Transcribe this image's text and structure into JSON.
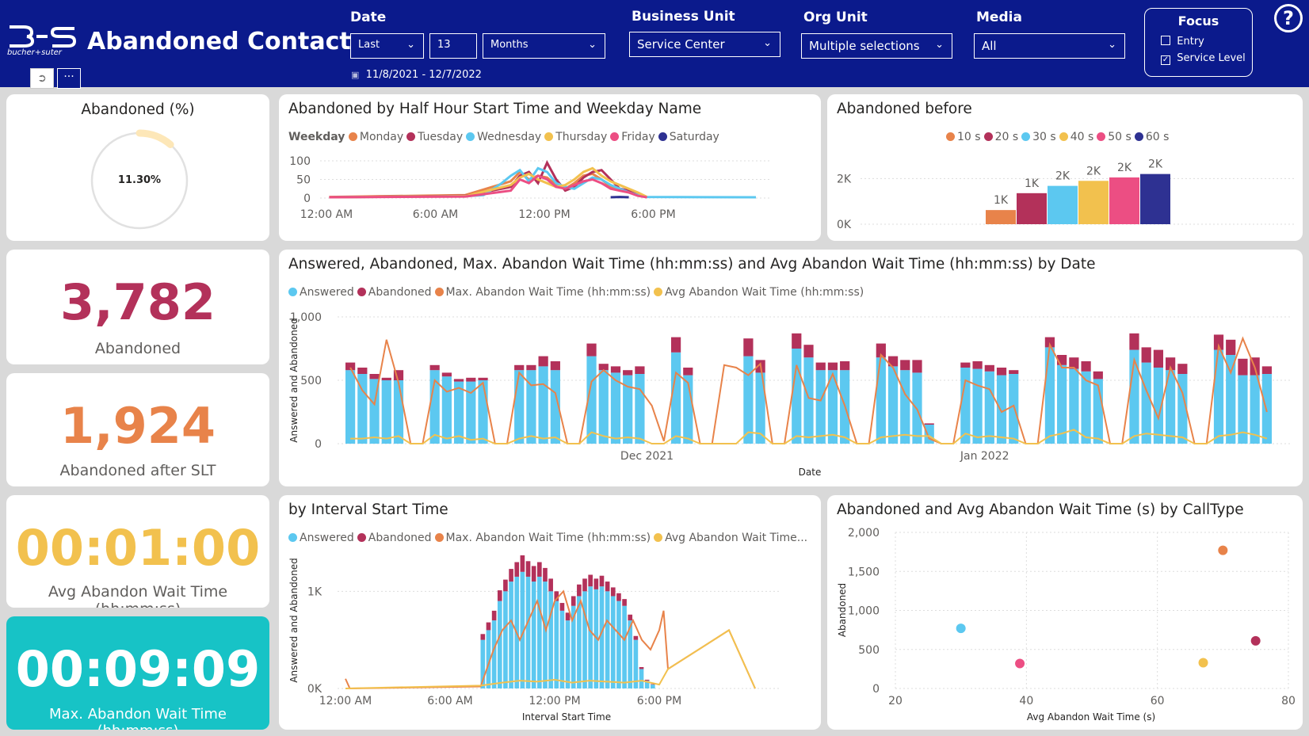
{
  "header": {
    "logo_text": "bucher+suter",
    "title": "Abandoned Contacts",
    "date": {
      "label": "Date",
      "relative": "Last",
      "count": "13",
      "unit": "Months",
      "range": "11/8/2021 - 12/7/2022"
    },
    "business_unit": {
      "label": "Business Unit",
      "value": "Service Center"
    },
    "org_unit": {
      "label": "Org Unit",
      "value": "Multiple selections"
    },
    "media": {
      "label": "Media",
      "value": "All"
    },
    "focus": {
      "label": "Focus",
      "options": [
        {
          "label": "Entry",
          "checked": false
        },
        {
          "label": "Service Level",
          "checked": true
        }
      ]
    },
    "help": "?"
  },
  "kpis": {
    "abandoned_pct": {
      "title": "Abandoned (%)",
      "value": "11.30%"
    },
    "abandoned": {
      "value": "3,782",
      "label": "Abandoned"
    },
    "abandoned_after_slt": {
      "value": "1,924",
      "label": "Abandoned after SLT"
    },
    "avg_wait": {
      "value": "00:01:00",
      "label": "Avg Abandon Wait Time (hh:mm:ss)"
    },
    "max_wait": {
      "value": "00:09:09",
      "label": "Max. Abandon Wait Time (hh:mm:ss)"
    }
  },
  "colors": {
    "answered": "#5cc8f0",
    "abandoned": "#b3315a",
    "max": "#e8834a",
    "avg": "#f2c14e",
    "monday": "#e8834a",
    "tuesday": "#b3315a",
    "wednesday": "#5cc8f0",
    "thursday": "#f2c14e",
    "friday": "#ec4e83",
    "saturday": "#2e3192",
    "kpi_abandoned": "#b3315a",
    "kpi_slt": "#e8834a",
    "kpi_avg": "#f2c14e",
    "kpi_max_bg": "#17c3c6"
  },
  "chart_data": [
    {
      "id": "halfhour",
      "type": "line",
      "title": "Abandoned by Half Hour Start Time and Weekday Name",
      "legend_title": "Weekday",
      "x_ticks": [
        "12:00 AM",
        "6:00 AM",
        "12:00 PM",
        "6:00 PM"
      ],
      "y_ticks": [
        "100",
        "50",
        "0"
      ],
      "ylim": [
        0,
        100
      ],
      "x_range": [
        0,
        24
      ],
      "series": [
        {
          "name": "Monday",
          "color": "#e8834a",
          "x": [
            0.5,
            8,
            10.5,
            11,
            11.5,
            12,
            12.5,
            13,
            13.5,
            14,
            14.5,
            15,
            15.5,
            16,
            16.5,
            17,
            17.5,
            18
          ],
          "y": [
            3,
            8,
            45,
            70,
            50,
            60,
            55,
            35,
            25,
            40,
            60,
            65,
            50,
            30,
            20,
            15,
            8,
            2
          ]
        },
        {
          "name": "Tuesday",
          "color": "#b3315a",
          "x": [
            0.5,
            8,
            10.5,
            11,
            11.5,
            12,
            12.5,
            13,
            13.5,
            14,
            14.5,
            15,
            15.5,
            16,
            16.5,
            17,
            17.5,
            18
          ],
          "y": [
            2,
            6,
            30,
            60,
            70,
            40,
            95,
            50,
            20,
            30,
            55,
            70,
            75,
            50,
            25,
            20,
            10,
            2
          ]
        },
        {
          "name": "Wednesday",
          "color": "#5cc8f0",
          "x": [
            0.5,
            8,
            9,
            10,
            10.5,
            11,
            11.5,
            12,
            12.5,
            13,
            13.5,
            14,
            14.5,
            15,
            15.5,
            16,
            16.5,
            17,
            17.5,
            18,
            24
          ],
          "y": [
            2,
            5,
            8,
            40,
            60,
            75,
            45,
            80,
            70,
            40,
            30,
            25,
            40,
            55,
            50,
            35,
            25,
            15,
            8,
            3,
            2
          ]
        },
        {
          "name": "Thursday",
          "color": "#f2c14e",
          "x": [
            0.5,
            8,
            10.5,
            11,
            11.5,
            12,
            12.5,
            13,
            13.5,
            14,
            14.5,
            15,
            15.5,
            16,
            16.5,
            17,
            17.5,
            18
          ],
          "y": [
            2,
            5,
            35,
            55,
            65,
            50,
            40,
            30,
            35,
            50,
            70,
            80,
            60,
            45,
            35,
            25,
            15,
            3
          ]
        },
        {
          "name": "Friday",
          "color": "#ec4e83",
          "x": [
            0.5,
            8,
            10.5,
            11,
            11.5,
            12,
            12.5,
            13,
            13.5,
            14,
            14.5,
            15,
            15.5,
            16,
            16.5,
            17,
            17.5,
            18
          ],
          "y": [
            2,
            4,
            20,
            50,
            40,
            60,
            50,
            30,
            25,
            35,
            45,
            50,
            40,
            25,
            20,
            15,
            6,
            2
          ]
        },
        {
          "name": "Saturday",
          "color": "#2e3192",
          "x": [
            16,
            16.5,
            17
          ],
          "y": [
            2,
            3,
            2
          ]
        }
      ]
    },
    {
      "id": "before",
      "type": "bar",
      "title": "Abandoned before",
      "categories": [
        "10 s",
        "20 s",
        "30 s",
        "40 s",
        "50 s",
        "60 s"
      ],
      "colors": [
        "#e8834a",
        "#b3315a",
        "#5cc8f0",
        "#f2c14e",
        "#ec4e83",
        "#2e3192"
      ],
      "values": [
        620,
        1360,
        1680,
        1900,
        2050,
        2200
      ],
      "labels": [
        "1K",
        "1K",
        "2K",
        "2K",
        "2K",
        "2K"
      ],
      "y_ticks": [
        "2K",
        "0K"
      ],
      "ylim": [
        0,
        2500
      ]
    },
    {
      "id": "bydate",
      "type": "bar",
      "title": "Answered, Abandoned, Max. Abandon Wait Time (hh:mm:ss) and Avg Abandon Wait Time (hh:mm:ss) by Date",
      "legend": [
        "Answered",
        "Abandoned",
        "Max. Abandon Wait Time (hh:mm:ss)",
        "Avg Abandon Wait Time (hh:mm:ss)"
      ],
      "ylabel": "Answered and Abandoned",
      "xlabel": "Date",
      "y_ticks": [
        "1,000",
        "500",
        "0"
      ],
      "ylim": [
        0,
        1000
      ],
      "x_ticks": [
        "Dec 2021",
        "Jan 2022"
      ],
      "x_tick_index": [
        25,
        53
      ],
      "answered": [
        580,
        550,
        510,
        500,
        500,
        0,
        0,
        580,
        530,
        490,
        490,
        500,
        0,
        0,
        580,
        580,
        610,
        580,
        0,
        0,
        690,
        580,
        560,
        540,
        550,
        0,
        0,
        720,
        540,
        0,
        0,
        0,
        0,
        690,
        560,
        0,
        0,
        750,
        680,
        580,
        580,
        580,
        0,
        0,
        680,
        610,
        580,
        560,
        150,
        0,
        0,
        600,
        590,
        570,
        540,
        550,
        0,
        0,
        760,
        620,
        590,
        570,
        510,
        0,
        0,
        740,
        640,
        600,
        580,
        550,
        0,
        0,
        740,
        700,
        540,
        540,
        550
      ],
      "abandoned": [
        60,
        50,
        40,
        20,
        80,
        0,
        0,
        40,
        30,
        20,
        30,
        20,
        0,
        0,
        40,
        40,
        80,
        70,
        0,
        0,
        100,
        50,
        50,
        40,
        60,
        0,
        0,
        120,
        60,
        0,
        0,
        0,
        0,
        140,
        100,
        0,
        0,
        120,
        100,
        60,
        60,
        70,
        0,
        0,
        110,
        80,
        80,
        100,
        10,
        0,
        0,
        40,
        60,
        50,
        60,
        30,
        0,
        0,
        80,
        80,
        90,
        80,
        60,
        0,
        0,
        130,
        120,
        140,
        100,
        80,
        0,
        0,
        120,
        120,
        130,
        140,
        60
      ],
      "max": [
        600,
        420,
        310,
        820,
        480,
        0,
        0,
        500,
        410,
        440,
        400,
        480,
        0,
        0,
        560,
        460,
        470,
        400,
        0,
        0,
        490,
        580,
        500,
        450,
        430,
        300,
        20,
        560,
        480,
        0,
        0,
        620,
        600,
        540,
        630,
        0,
        0,
        620,
        360,
        340,
        550,
        300,
        0,
        0,
        700,
        600,
        390,
        270,
        40,
        0,
        0,
        500,
        460,
        430,
        250,
        300,
        0,
        0,
        780,
        600,
        600,
        500,
        460,
        0,
        0,
        660,
        420,
        200,
        600,
        400,
        0,
        0,
        770,
        560,
        830,
        600,
        250
      ],
      "avg": [
        40,
        40,
        50,
        40,
        60,
        0,
        0,
        70,
        40,
        60,
        30,
        40,
        0,
        0,
        40,
        60,
        40,
        50,
        0,
        0,
        90,
        60,
        40,
        50,
        40,
        0,
        0,
        60,
        40,
        0,
        0,
        0,
        0,
        90,
        80,
        0,
        0,
        60,
        50,
        60,
        70,
        50,
        0,
        0,
        50,
        60,
        70,
        60,
        60,
        0,
        0,
        80,
        50,
        60,
        50,
        40,
        0,
        0,
        60,
        80,
        110,
        50,
        40,
        0,
        0,
        60,
        80,
        70,
        60,
        50,
        0,
        0,
        60,
        70,
        90,
        70,
        40
      ]
    },
    {
      "id": "interval",
      "type": "bar",
      "title": "by Interval Start Time",
      "legend": [
        "Answered",
        "Abandoned",
        "Max. Abandon Wait Time (hh:mm:ss)",
        "Avg Abandon Wait Time..."
      ],
      "ylabel": "Answered and Abandoned",
      "xlabel": "Interval Start Time",
      "y_ticks": [
        "1K",
        "0K"
      ],
      "ylim": [
        0,
        1500
      ],
      "x_ticks": [
        "12:00 AM",
        "6:00 AM",
        "12:00 PM",
        "6:00 PM"
      ],
      "answered_start": 7.75,
      "answered": [
        500,
        600,
        700,
        900,
        1000,
        1100,
        1150,
        1200,
        1150,
        1100,
        1150,
        1100,
        1000,
        900,
        800,
        700,
        850,
        950,
        1000,
        1050,
        1020,
        1050,
        1000,
        950,
        900,
        850,
        700,
        500,
        200,
        80,
        40
      ],
      "abandoned": [
        60,
        80,
        100,
        110,
        120,
        130,
        150,
        170,
        160,
        160,
        150,
        140,
        130,
        100,
        80,
        80,
        100,
        120,
        130,
        120,
        110,
        110,
        100,
        90,
        80,
        70,
        60,
        40,
        20,
        10,
        5
      ],
      "max_x": [
        0,
        0.25,
        7.75,
        8.5,
        9,
        9.5,
        10,
        10.5,
        11,
        11.5,
        12,
        12.5,
        13,
        13.5,
        14,
        14.5,
        15,
        15.5,
        16,
        16.5,
        17,
        17.5,
        18,
        18.25,
        18.5,
        22,
        23.5
      ],
      "max_y": [
        100,
        0,
        20,
        400,
        600,
        700,
        500,
        700,
        900,
        600,
        900,
        1000,
        700,
        900,
        600,
        500,
        700,
        600,
        500,
        700,
        500,
        400,
        600,
        800,
        200,
        600,
        0
      ],
      "avg_x": [
        0,
        7.75,
        9,
        10,
        11,
        12,
        13,
        14,
        15,
        16,
        17,
        18,
        18.5,
        22,
        23.5
      ],
      "avg_y": [
        0,
        30,
        60,
        80,
        70,
        90,
        60,
        80,
        70,
        60,
        80,
        40,
        200,
        600,
        0
      ]
    },
    {
      "id": "calltype",
      "type": "scatter",
      "title": "Abandoned and Avg Abandon Wait Time (s) by CallType",
      "xlabel": "Avg Abandon Wait Time (s)",
      "ylabel": "Abandoned",
      "x_ticks": [
        "20",
        "40",
        "60",
        "80"
      ],
      "y_ticks": [
        "2,000",
        "1,500",
        "1,000",
        "500",
        "0"
      ],
      "xlim": [
        20,
        80
      ],
      "ylim": [
        0,
        2000
      ],
      "points": [
        {
          "x": 30,
          "y": 770,
          "color": "#5cc8f0"
        },
        {
          "x": 39,
          "y": 320,
          "color": "#ec4e83"
        },
        {
          "x": 70,
          "y": 1770,
          "color": "#e8834a"
        },
        {
          "x": 67,
          "y": 330,
          "color": "#f2c14e"
        },
        {
          "x": 75,
          "y": 610,
          "color": "#b3315a"
        }
      ]
    }
  ]
}
